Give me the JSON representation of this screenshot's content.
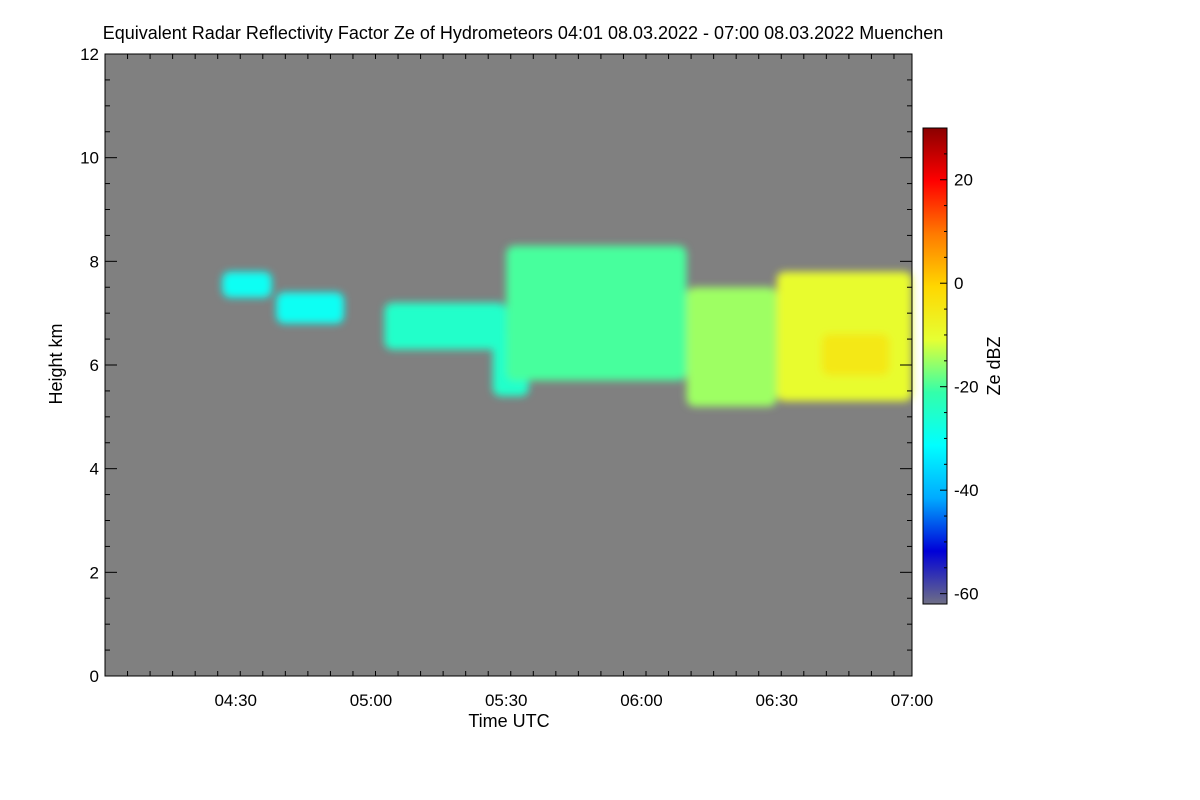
{
  "chart_data": {
    "type": "heatmap",
    "title": "Equivalent Radar Reflectivity Factor Ze of Hydrometeors   04:01 08.03.2022 - 07:00 08.03.2022 Muenchen",
    "xlabel": "Time UTC",
    "ylabel": "Height km",
    "xlim": [
      "04:01",
      "07:00"
    ],
    "ylim": [
      0,
      12
    ],
    "x_ticks": [
      "04:30",
      "05:00",
      "05:30",
      "06:00",
      "06:30",
      "07:00"
    ],
    "y_ticks": [
      0,
      2,
      4,
      6,
      8,
      10,
      12
    ],
    "background_color": "#808080",
    "colorbar": {
      "label": "Ze dBZ",
      "range": [
        -62,
        30
      ],
      "ticks": [
        20,
        0,
        -20,
        -40,
        -60
      ],
      "colormap": [
        "#6f6f86",
        "#0000d8",
        "#00aaff",
        "#00ffff",
        "#33ffaa",
        "#e6ff33",
        "#ffd700",
        "#ff7a00",
        "#ff0000",
        "#8b0000"
      ]
    },
    "echo_regions": [
      {
        "t": [
          "04:27",
          "04:38"
        ],
        "base_km": 7.3,
        "top_km": 7.8,
        "ze_dbz": -30
      },
      {
        "t": [
          "04:39",
          "04:54"
        ],
        "base_km": 6.8,
        "top_km": 7.4,
        "ze_dbz": -30
      },
      {
        "t": [
          "05:03",
          "05:30"
        ],
        "base_km": 6.3,
        "top_km": 7.2,
        "ze_dbz": -25
      },
      {
        "t": [
          "05:27",
          "05:35"
        ],
        "base_km": 5.4,
        "top_km": 6.6,
        "ze_dbz": -25
      },
      {
        "t": [
          "05:30",
          "06:10"
        ],
        "base_km": 5.7,
        "top_km": 8.3,
        "ze_dbz": -20
      },
      {
        "t": [
          "06:10",
          "06:30"
        ],
        "base_km": 5.2,
        "top_km": 7.5,
        "ze_dbz": -15
      },
      {
        "t": [
          "06:30",
          "07:00"
        ],
        "base_km": 5.3,
        "top_km": 7.8,
        "ze_dbz": -10
      },
      {
        "t": [
          "06:40",
          "06:55"
        ],
        "base_km": 5.8,
        "top_km": 6.6,
        "ze_dbz": -5
      }
    ]
  }
}
